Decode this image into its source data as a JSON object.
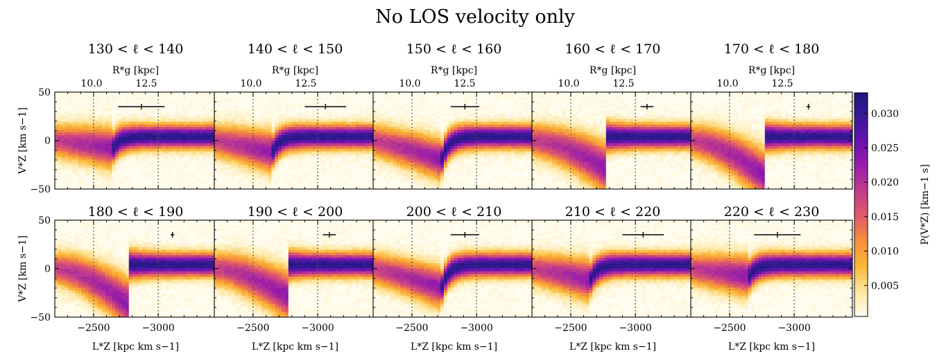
{
  "figure": {
    "title": "No LOS velocity only",
    "colorbar": {
      "label": "P(V_Z^*) [km^{-1} s]",
      "label_text": "P(V*Z) [km−1 s]",
      "ticks": [
        "0.005",
        "0.010",
        "0.015",
        "0.020",
        "0.025",
        "0.030"
      ],
      "range": [
        0.0005,
        0.033
      ],
      "colormap": [
        "#fffdf0",
        "#fde6a0",
        "#fcb83a",
        "#f5913a",
        "#e35d67",
        "#c23d8a",
        "#9c1fa8",
        "#6a12b0",
        "#3a1a96",
        "#1e1680"
      ]
    }
  },
  "chart_data": [
    {
      "type": "heatmap",
      "title": "130 < ℓ < 140",
      "xlabel": "",
      "ylabel": "V*Z [km s−1]",
      "top_xlabel": "R*g [kpc]",
      "xticks": [],
      "yticks": [
        "50",
        "0",
        "−50"
      ],
      "top_xticks": [
        "10.0",
        "12.5"
      ],
      "xlim": [
        -2200,
        -3450
      ],
      "ylim": [
        -50,
        50
      ],
      "vlines": [
        -2500,
        -3000
      ],
      "errorbar": {
        "x": -2870,
        "y": 35,
        "xerr": 180
      },
      "break_x": -2650,
      "shape": "smooth",
      "dip": 8
    },
    {
      "type": "heatmap",
      "title": "140 < ℓ < 150",
      "xlabel": "",
      "ylabel": "",
      "top_xlabel": "R*g [kpc]",
      "xticks": [],
      "yticks": [],
      "top_xticks": [
        "10.0",
        "12.5"
      ],
      "xlim": [
        -2200,
        -3450
      ],
      "ylim": [
        -50,
        50
      ],
      "vlines": [
        -2500,
        -3000
      ],
      "errorbar": {
        "x": -3060,
        "y": 35,
        "xerr": 160
      },
      "break_x": -2650,
      "shape": "smooth",
      "dip": 12
    },
    {
      "type": "heatmap",
      "title": "150 < ℓ < 160",
      "xlabel": "",
      "ylabel": "",
      "top_xlabel": "R*g [kpc]",
      "xticks": [],
      "yticks": [],
      "top_xticks": [
        "10.0",
        "12.5"
      ],
      "xlim": [
        -2200,
        -3450
      ],
      "ylim": [
        -50,
        50
      ],
      "vlines": [
        -2500,
        -3000
      ],
      "errorbar": {
        "x": -2910,
        "y": 35,
        "xerr": 110
      },
      "break_x": -2730,
      "shape": "smooth",
      "dip": 20
    },
    {
      "type": "heatmap",
      "title": "160 < ℓ < 170",
      "xlabel": "",
      "ylabel": "",
      "top_xlabel": "R*g [kpc]",
      "xticks": [],
      "yticks": [],
      "top_xticks": [
        "10.0",
        "12.5"
      ],
      "xlim": [
        -2200,
        -3450
      ],
      "ylim": [
        -50,
        50
      ],
      "vlines": [
        -2500,
        -3000
      ],
      "errorbar": {
        "x": -3090,
        "y": 35,
        "xerr": 50
      },
      "break_x": -2760,
      "shape": "sharp",
      "dip": 28
    },
    {
      "type": "heatmap",
      "title": "170 < ℓ < 180",
      "xlabel": "",
      "ylabel": "",
      "top_xlabel": "R*g [kpc]",
      "xticks": [],
      "yticks": [],
      "top_xticks": [
        "10.0",
        "12.5"
      ],
      "xlim": [
        -2200,
        -3450
      ],
      "ylim": [
        -50,
        50
      ],
      "vlines": [
        -2500,
        -3000
      ],
      "errorbar": {
        "x": -3110,
        "y": 35,
        "xerr": 15
      },
      "break_x": -2760,
      "shape": "sharp",
      "dip": 36
    },
    {
      "type": "heatmap",
      "title": "180 < ℓ < 190",
      "xlabel": "L*Z [kpc km s−1]",
      "ylabel": "V*Z [km s−1]",
      "top_xlabel": "",
      "xticks": [
        "−2500",
        "−3000"
      ],
      "yticks": [
        "50",
        "0",
        "−50"
      ],
      "top_xticks": [],
      "xlim": [
        -2200,
        -3450
      ],
      "ylim": [
        -50,
        50
      ],
      "vlines": [
        -2500,
        -3000
      ],
      "errorbar": {
        "x": -3110,
        "y": 35,
        "xerr": 15
      },
      "break_x": -2760,
      "shape": "sharp",
      "dip": 36
    },
    {
      "type": "heatmap",
      "title": "190 < ℓ < 200",
      "xlabel": "L*Z [kpc km s−1]",
      "ylabel": "",
      "top_xlabel": "",
      "xticks": [
        "−2500",
        "−3000"
      ],
      "yticks": [],
      "top_xticks": [],
      "xlim": [
        -2200,
        -3450
      ],
      "ylim": [
        -50,
        50
      ],
      "vlines": [
        -2500,
        -3000
      ],
      "errorbar": {
        "x": -3090,
        "y": 35,
        "xerr": 50
      },
      "break_x": -2760,
      "shape": "sharp",
      "dip": 28
    },
    {
      "type": "heatmap",
      "title": "200 < ℓ < 210",
      "xlabel": "L*Z [kpc km s−1]",
      "ylabel": "",
      "top_xlabel": "",
      "xticks": [
        "−2500",
        "−3000"
      ],
      "yticks": [],
      "top_xticks": [],
      "xlim": [
        -2200,
        -3450
      ],
      "ylim": [
        -50,
        50
      ],
      "vlines": [
        -2500,
        -3000
      ],
      "errorbar": {
        "x": -2910,
        "y": 35,
        "xerr": 110
      },
      "break_x": -2730,
      "shape": "smooth",
      "dip": 20
    },
    {
      "type": "heatmap",
      "title": "210 < ℓ < 220",
      "xlabel": "L*Z [kpc km s−1]",
      "ylabel": "",
      "top_xlabel": "",
      "xticks": [
        "−2500",
        "−3000"
      ],
      "yticks": [],
      "top_xticks": [],
      "xlim": [
        -2200,
        -3450
      ],
      "ylim": [
        -50,
        50
      ],
      "vlines": [
        -2500,
        -3000
      ],
      "errorbar": {
        "x": -3060,
        "y": 35,
        "xerr": 160
      },
      "break_x": -2650,
      "shape": "smooth",
      "dip": 12
    },
    {
      "type": "heatmap",
      "title": "220 < ℓ < 230",
      "xlabel": "L*Z [kpc km s−1]",
      "ylabel": "",
      "top_xlabel": "",
      "xticks": [
        "−2500",
        "−3000"
      ],
      "yticks": [],
      "top_xticks": [],
      "xlim": [
        -2200,
        -3450
      ],
      "ylim": [
        -50,
        50
      ],
      "vlines": [
        -2500,
        -3000
      ],
      "errorbar": {
        "x": -2870,
        "y": 35,
        "xerr": 180
      },
      "break_x": -2650,
      "shape": "smooth",
      "dip": 8
    }
  ]
}
